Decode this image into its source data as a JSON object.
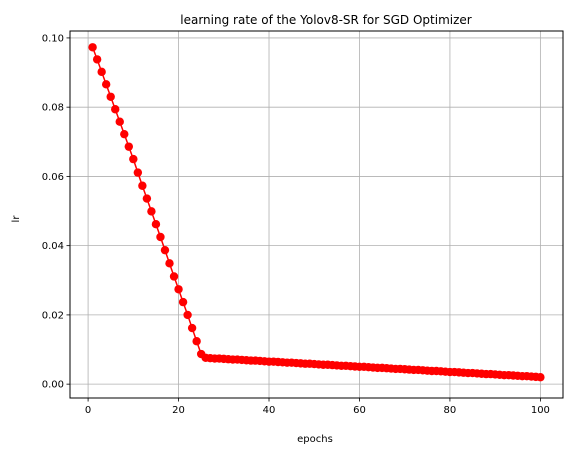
{
  "chart_data": {
    "type": "line",
    "title": "learning rate of the Yolov8-SR for SGD Optimizer",
    "xlabel": "epochs",
    "ylabel": "lr",
    "xlim": [
      -4,
      105
    ],
    "ylim": [
      -0.004,
      0.102
    ],
    "xticks": [
      0,
      20,
      40,
      60,
      80,
      100
    ],
    "yticks": [
      0.0,
      0.02,
      0.04,
      0.06,
      0.08,
      0.1
    ],
    "xtick_labels": [
      "0",
      "20",
      "40",
      "60",
      "80",
      "100"
    ],
    "ytick_labels": [
      "0.00",
      "0.02",
      "0.04",
      "0.06",
      "0.08",
      "0.10"
    ],
    "grid": true,
    "colors": {
      "series": "#ff0000",
      "grid": "#b0b0b0",
      "axes": "#000000"
    },
    "series": [
      {
        "marker": "circle",
        "x": [
          1,
          2,
          3,
          4,
          5,
          6,
          7,
          8,
          9,
          10,
          11,
          12,
          13,
          14,
          15,
          16,
          17,
          18,
          19,
          20,
          21,
          22,
          23,
          24,
          25,
          26,
          27,
          28,
          29,
          30,
          31,
          32,
          33,
          34,
          35,
          36,
          37,
          38,
          39,
          40,
          41,
          42,
          43,
          44,
          45,
          46,
          47,
          48,
          49,
          50,
          51,
          52,
          53,
          54,
          55,
          56,
          57,
          58,
          59,
          60,
          61,
          62,
          63,
          64,
          65,
          66,
          67,
          68,
          69,
          70,
          71,
          72,
          73,
          74,
          75,
          76,
          77,
          78,
          79,
          80,
          81,
          82,
          83,
          84,
          85,
          86,
          87,
          88,
          89,
          90,
          91,
          92,
          93,
          94,
          95,
          96,
          97,
          98,
          99,
          100
        ],
        "y": [
          0.0973,
          0.0938,
          0.0902,
          0.0866,
          0.083,
          0.0794,
          0.0758,
          0.0722,
          0.0686,
          0.065,
          0.0611,
          0.0573,
          0.0536,
          0.0499,
          0.0462,
          0.0425,
          0.0387,
          0.0349,
          0.0311,
          0.0274,
          0.0237,
          0.02,
          0.0162,
          0.0124,
          0.0087,
          0.0076,
          0.0075,
          0.0074,
          0.0074,
          0.0073,
          0.0072,
          0.0071,
          0.0071,
          0.007,
          0.0069,
          0.0068,
          0.0068,
          0.0067,
          0.0066,
          0.0065,
          0.0065,
          0.0064,
          0.0063,
          0.0062,
          0.0062,
          0.0061,
          0.006,
          0.0059,
          0.0059,
          0.0058,
          0.0057,
          0.0056,
          0.0056,
          0.0055,
          0.0054,
          0.0053,
          0.0053,
          0.0052,
          0.0051,
          0.005,
          0.005,
          0.0049,
          0.0048,
          0.0047,
          0.0047,
          0.0046,
          0.0045,
          0.0044,
          0.0044,
          0.0043,
          0.0042,
          0.0041,
          0.0041,
          0.004,
          0.0039,
          0.0038,
          0.0038,
          0.0037,
          0.0036,
          0.0035,
          0.0035,
          0.0034,
          0.0033,
          0.0032,
          0.0032,
          0.0031,
          0.003,
          0.0029,
          0.0029,
          0.0028,
          0.0027,
          0.0026,
          0.0026,
          0.0025,
          0.0024,
          0.0023,
          0.0023,
          0.0022,
          0.0021,
          0.002
        ]
      }
    ]
  }
}
